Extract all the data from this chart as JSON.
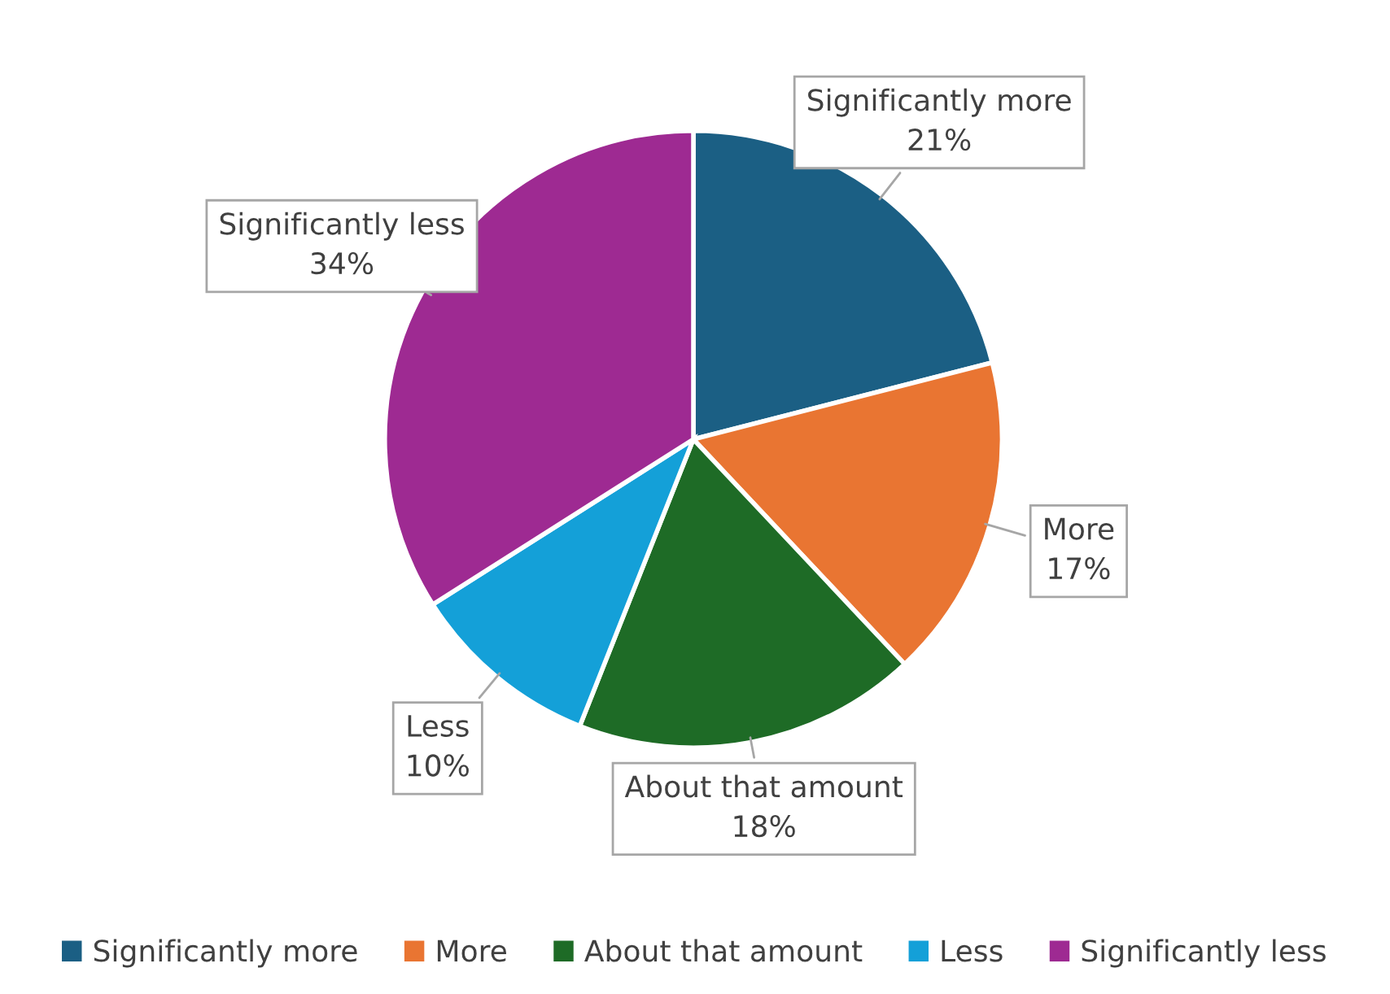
{
  "chart_data": {
    "type": "pie",
    "categories": [
      "Significantly more",
      "More",
      "About that amount",
      "Less",
      "Significantly less"
    ],
    "values": [
      21,
      17,
      18,
      10,
      34
    ],
    "colors": [
      "#1b5f84",
      "#e97532",
      "#1e6b26",
      "#14a0d8",
      "#9e2a92"
    ],
    "value_labels": [
      "21%",
      "17%",
      "18%",
      "10%",
      "34%"
    ],
    "legend": "bottom"
  }
}
